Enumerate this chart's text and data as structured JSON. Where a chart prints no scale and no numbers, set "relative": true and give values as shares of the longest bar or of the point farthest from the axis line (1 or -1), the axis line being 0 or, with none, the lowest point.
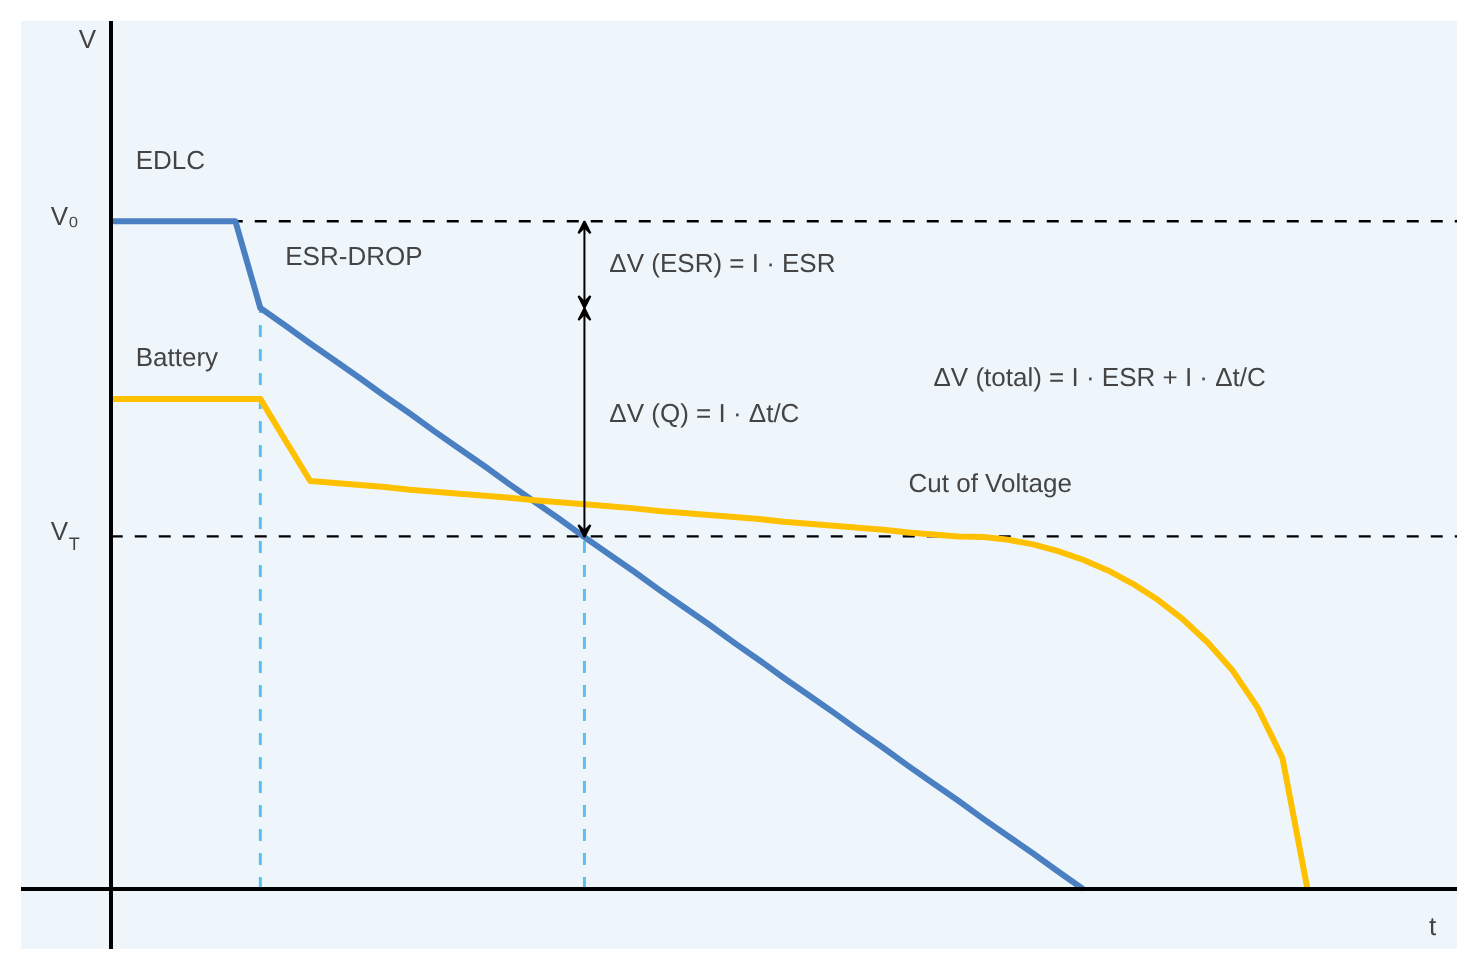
{
  "chart_data": {
    "type": "line",
    "relative": true,
    "xlabel": "t",
    "categories": [
      null,
      null,
      null,
      null,
      null,
      null,
      null,
      null,
      null,
      null,
      null,
      null,
      null,
      null,
      null,
      null,
      null,
      null,
      null,
      null,
      null,
      null,
      null,
      null,
      null,
      null,
      null,
      null,
      null,
      null,
      null,
      null,
      null,
      null,
      null,
      null,
      null,
      null,
      null,
      null,
      null,
      null,
      null,
      null,
      null,
      null,
      null,
      null,
      null,
      null,
      null,
      null,
      null,
      null,
      null
    ],
    "series": [
      {
        "name": "EDLC",
        "color": "#4a7fc1",
        "values": [
          1,
          1,
          1,
          1,
          1,
          1,
          0.87,
          0.844,
          0.817,
          0.791,
          0.765,
          0.738,
          0.712,
          0.685,
          0.659,
          0.633,
          0.606,
          0.58,
          0.554,
          0.527,
          0.501,
          0.475,
          0.448,
          0.422,
          0.396,
          0.369,
          0.343,
          0.316,
          0.29,
          0.264,
          0.237,
          0.211,
          0.184,
          0.158,
          0.132,
          0.105,
          0.079,
          0.053,
          0.026,
          0,
          null,
          null,
          null,
          null,
          null,
          null,
          null,
          null,
          null,
          null,
          null,
          null,
          null,
          null,
          null
        ]
      },
      {
        "name": "Battery",
        "color": "#ffc000",
        "values": [
          0.734,
          0.734,
          0.734,
          0.734,
          0.734,
          0.734,
          0.734,
          0.672,
          0.611,
          0.608,
          0.605,
          0.602,
          0.598,
          0.595,
          0.592,
          0.589,
          0.586,
          0.582,
          0.579,
          0.576,
          0.573,
          0.57,
          0.566,
          0.563,
          0.56,
          0.557,
          0.554,
          0.55,
          0.547,
          0.544,
          0.541,
          0.538,
          0.534,
          0.531,
          0.528,
          0.527,
          0.523,
          0.516,
          0.506,
          0.493,
          0.477,
          0.457,
          0.433,
          0.404,
          0.369,
          0.327,
          0.272,
          0.196,
          0,
          null,
          null,
          null,
          null,
          null,
          null
        ]
      }
    ],
    "ref_lines": [
      {
        "axis": "y",
        "value": 1,
        "label": "V₀",
        "color": "#000000",
        "line_style": "dashed"
      },
      {
        "axis": "y",
        "value": 0.528,
        "label": "V$_{T}$",
        "color": "#000000",
        "line_style": "dashed"
      }
    ],
    "annotations": [
      "ESR-DROP",
      "ΔV (ESR) = I · ESR",
      "ΔV (Q) = I · Δt/C",
      "ΔV (total) = I · ESR + I · Δt/C",
      "Cut of Voltage",
      "V"
    ],
    "marker": "none",
    "line_style": "solid"
  }
}
